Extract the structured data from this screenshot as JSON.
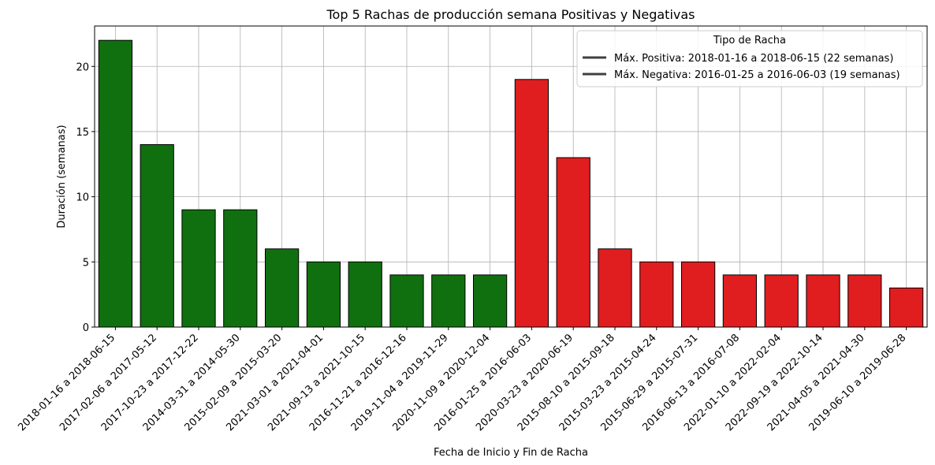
{
  "chart_data": {
    "type": "bar",
    "title": "Top 5 Rachas de producción semana Positivas y Negativas",
    "xlabel": "Fecha de Inicio y Fin de Racha",
    "ylabel": "Duración (semanas)",
    "ylim": [
      0,
      23.1
    ],
    "yticks": [
      0,
      5,
      10,
      15,
      20
    ],
    "grid": true,
    "legend_placement": "top-right",
    "legend_title": "Tipo de Racha",
    "legend": [
      {
        "label": "Máx. Positiva: 2018-01-16 a 2018-06-15 (22 semanas)",
        "color": "#3f3f3f"
      },
      {
        "label": "Máx. Negativa: 2016-01-25 a 2016-06-03 (19 semanas)",
        "color": "#3f3f3f"
      }
    ],
    "colors": {
      "positive": "#107010",
      "negative": "#e01e20",
      "edge": "#000000"
    },
    "categories": [
      "2018-01-16 a 2018-06-15",
      "2017-02-06 a 2017-05-12",
      "2017-10-23 a 2017-12-22",
      "2014-03-31 a 2014-05-30",
      "2015-02-09 a 2015-03-20",
      "2021-03-01 a 2021-04-01",
      "2021-09-13 a 2021-10-15",
      "2016-11-21 a 2016-12-16",
      "2019-11-04 a 2019-11-29",
      "2020-11-09 a 2020-12-04",
      "2016-01-25 a 2016-06-03",
      "2020-03-23 a 2020-06-19",
      "2015-08-10 a 2015-09-18",
      "2015-03-23 a 2015-04-24",
      "2015-06-29 a 2015-07-31",
      "2016-06-13 a 2016-07-08",
      "2022-01-10 a 2022-02-04",
      "2022-09-19 a 2022-10-14",
      "2021-04-05 a 2021-04-30",
      "2019-06-10 a 2019-06-28"
    ],
    "values": [
      22,
      14,
      9,
      9,
      6,
      5,
      5,
      4,
      4,
      4,
      19,
      13,
      6,
      5,
      5,
      4,
      4,
      4,
      4,
      3
    ],
    "kinds": [
      "positive",
      "positive",
      "positive",
      "positive",
      "positive",
      "positive",
      "positive",
      "positive",
      "positive",
      "positive",
      "negative",
      "negative",
      "negative",
      "negative",
      "negative",
      "negative",
      "negative",
      "negative",
      "negative",
      "negative"
    ]
  }
}
